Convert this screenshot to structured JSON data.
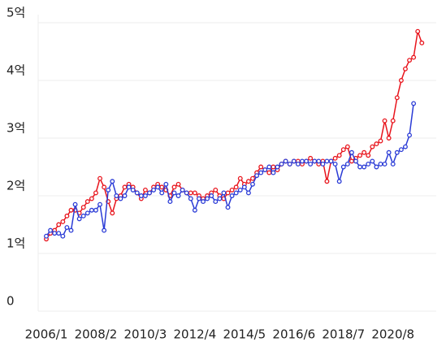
{
  "chart_data": {
    "type": "line",
    "categories": [
      "2006/1",
      null,
      null,
      null,
      null,
      null,
      null,
      null,
      null,
      null,
      null,
      null,
      "2008/2",
      null,
      null,
      null,
      null,
      null,
      null,
      null,
      null,
      null,
      null,
      null,
      "2010/3",
      null,
      null,
      null,
      null,
      null,
      null,
      null,
      null,
      null,
      null,
      null,
      "2012/4",
      null,
      null,
      null,
      null,
      null,
      null,
      null,
      null,
      null,
      null,
      null,
      "2014/5",
      null,
      null,
      null,
      null,
      null,
      null,
      null,
      null,
      null,
      null,
      null,
      "2016/6",
      null,
      null,
      null,
      null,
      null,
      null,
      null,
      null,
      null,
      null,
      null,
      "2018/7",
      null,
      null,
      null,
      null,
      null,
      null,
      null,
      null,
      null,
      null,
      null,
      "2020/8",
      null,
      null,
      null,
      null,
      null,
      null,
      null
    ],
    "series": [
      {
        "color": "#e8141c",
        "values": [
          1.25,
          1.35,
          1.4,
          1.5,
          1.55,
          1.65,
          1.75,
          1.75,
          1.7,
          1.8,
          1.9,
          1.95,
          2.05,
          2.3,
          2.15,
          1.9,
          1.7,
          1.95,
          2.0,
          2.15,
          2.2,
          2.15,
          2.05,
          1.95,
          2.1,
          2.05,
          2.15,
          2.2,
          2.15,
          2.1,
          2.0,
          2.15,
          2.2,
          2.1,
          2.05,
          2.05,
          2.05,
          2.0,
          1.95,
          2.0,
          2.05,
          2.1,
          2.0,
          1.95,
          2.05,
          2.1,
          2.15,
          2.3,
          2.2,
          2.25,
          2.3,
          2.4,
          2.5,
          2.45,
          2.4,
          2.5,
          2.45,
          2.55,
          2.6,
          2.55,
          2.6,
          2.6,
          2.55,
          2.6,
          2.65,
          2.6,
          2.55,
          2.6,
          2.25,
          2.6,
          2.65,
          2.7,
          2.8,
          2.85,
          2.6,
          2.65,
          2.7,
          2.75,
          2.7,
          2.85,
          2.9,
          2.95,
          3.3,
          3.0,
          3.3,
          3.7,
          4.0,
          4.2,
          4.35,
          4.4,
          4.85,
          4.65
        ]
      },
      {
        "color": "#2a3bd6",
        "values": [
          1.3,
          1.4,
          1.35,
          1.35,
          1.3,
          1.45,
          1.4,
          1.85,
          1.6,
          1.65,
          1.7,
          1.75,
          1.75,
          1.85,
          1.4,
          2.1,
          2.25,
          2.0,
          1.95,
          2.0,
          2.15,
          2.1,
          2.05,
          2.0,
          2.0,
          2.05,
          2.1,
          2.15,
          2.05,
          2.2,
          1.9,
          2.05,
          2.0,
          2.1,
          2.05,
          1.95,
          1.75,
          1.95,
          1.9,
          1.95,
          2.0,
          1.9,
          1.95,
          2.05,
          1.8,
          2.0,
          2.05,
          2.1,
          2.15,
          2.05,
          2.2,
          2.35,
          2.4,
          2.45,
          2.5,
          2.4,
          2.5,
          2.55,
          2.6,
          2.55,
          2.6,
          2.55,
          2.6,
          2.6,
          2.55,
          2.6,
          2.6,
          2.55,
          2.6,
          2.6,
          2.55,
          2.25,
          2.5,
          2.55,
          2.75,
          2.6,
          2.5,
          2.5,
          2.55,
          2.6,
          2.5,
          2.55,
          2.55,
          2.75,
          2.55,
          2.75,
          2.8,
          2.85,
          3.05,
          3.6,
          null,
          null
        ]
      }
    ],
    "ylim": [
      0,
      5
    ],
    "yticks": [
      0,
      {
        "value": 1,
        "label": "1억"
      },
      {
        "value": 2,
        "label": "2억"
      },
      {
        "value": 3,
        "label": "3억"
      },
      {
        "value": 4,
        "label": "4억"
      },
      {
        "value": 5,
        "label": "5억"
      }
    ],
    "grid": true
  }
}
